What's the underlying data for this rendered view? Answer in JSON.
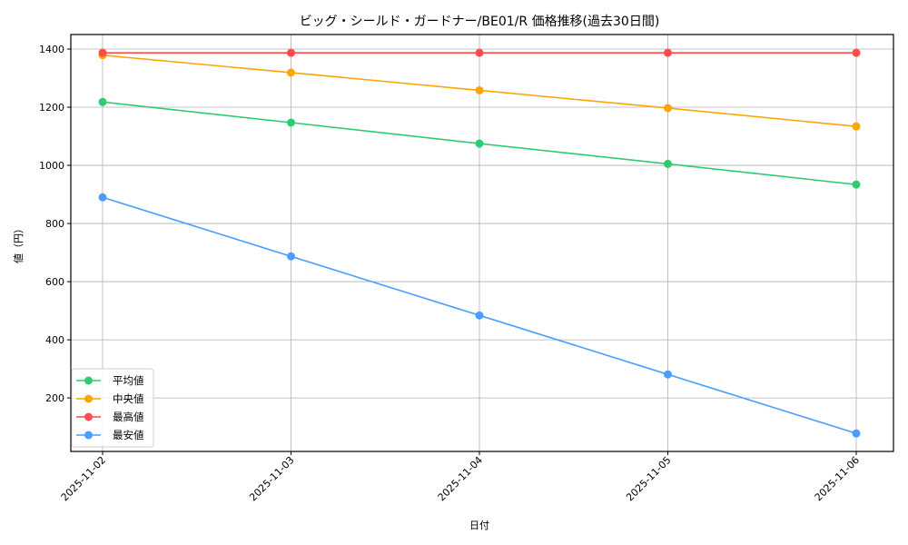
{
  "chart_data": {
    "type": "line",
    "title": "ビッグ・シールド・ガードナー/BE01/R 価格推移(過去30日間)",
    "xlabel": "日付",
    "ylabel": "値（円）",
    "categories": [
      "2025-11-02",
      "2025-11-03",
      "2025-11-04",
      "2025-11-05",
      "2025-11-06"
    ],
    "series": [
      {
        "name": "平均値",
        "color": "#2ecc71",
        "values": [
          1218,
          1147,
          1075,
          1005,
          934
        ]
      },
      {
        "name": "中央値",
        "color": "#ffa500",
        "values": [
          1379,
          1319,
          1258,
          1197,
          1134
        ]
      },
      {
        "name": "最高値",
        "color": "#ff4d4d",
        "values": [
          1387,
          1387,
          1387,
          1387,
          1387
        ]
      },
      {
        "name": "最安値",
        "color": "#4a9eff",
        "values": [
          890,
          687,
          484,
          281,
          78
        ]
      }
    ],
    "yticks": [
      200,
      400,
      600,
      800,
      1000,
      1200,
      1400
    ],
    "ylim": [
      16,
      1450
    ],
    "grid": true,
    "legend_position": "lower left",
    "marker": "circle",
    "x_tick_rotation": 45
  }
}
